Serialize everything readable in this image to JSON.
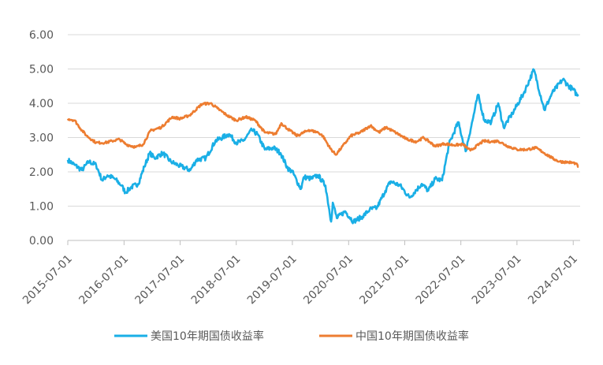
{
  "chart_data": {
    "type": "line",
    "title": "",
    "xlabel": "",
    "ylabel": "",
    "ylim": [
      0,
      6
    ],
    "y_ticks": [
      "0.00",
      "1.00",
      "2.00",
      "3.00",
      "4.00",
      "5.00",
      "6.00"
    ],
    "x_ticks": [
      "2015-07-01",
      "2016-07-01",
      "2017-07-01",
      "2018-07-01",
      "2019-07-01",
      "2020-07-01",
      "2021-07-01",
      "2022-07-01",
      "2023-07-01",
      "2024-07-01"
    ],
    "xlim": [
      "2015-07-01",
      "2024-08-15"
    ],
    "grid": "horizontal",
    "legend_position": "bottom",
    "series": [
      {
        "name": "美国10年期国债收益率",
        "color": "#1aafe6",
        "points": [
          [
            "2015-07-01",
            2.35
          ],
          [
            "2015-08-15",
            2.2
          ],
          [
            "2015-10-01",
            2.05
          ],
          [
            "2015-11-15",
            2.3
          ],
          [
            "2016-01-01",
            2.2
          ],
          [
            "2016-02-10",
            1.75
          ],
          [
            "2016-03-15",
            1.9
          ],
          [
            "2016-05-01",
            1.8
          ],
          [
            "2016-06-15",
            1.6
          ],
          [
            "2016-07-10",
            1.4
          ],
          [
            "2016-08-15",
            1.55
          ],
          [
            "2016-10-01",
            1.65
          ],
          [
            "2016-11-10",
            2.15
          ],
          [
            "2016-12-15",
            2.55
          ],
          [
            "2017-01-15",
            2.4
          ],
          [
            "2017-03-10",
            2.55
          ],
          [
            "2017-05-01",
            2.3
          ],
          [
            "2017-06-15",
            2.2
          ],
          [
            "2017-09-05",
            2.05
          ],
          [
            "2017-10-15",
            2.35
          ],
          [
            "2017-12-15",
            2.4
          ],
          [
            "2018-02-15",
            2.9
          ],
          [
            "2018-05-15",
            3.1
          ],
          [
            "2018-07-01",
            2.85
          ],
          [
            "2018-08-15",
            2.9
          ],
          [
            "2018-10-10",
            3.22
          ],
          [
            "2018-11-15",
            3.1
          ],
          [
            "2019-01-03",
            2.65
          ],
          [
            "2019-03-01",
            2.7
          ],
          [
            "2019-04-15",
            2.55
          ],
          [
            "2019-06-01",
            2.1
          ],
          [
            "2019-07-01",
            2.0
          ],
          [
            "2019-08-25",
            1.5
          ],
          [
            "2019-09-15",
            1.85
          ],
          [
            "2019-11-01",
            1.8
          ],
          [
            "2019-12-15",
            1.9
          ],
          [
            "2020-02-01",
            1.6
          ],
          [
            "2020-03-09",
            0.55
          ],
          [
            "2020-03-20",
            1.1
          ],
          [
            "2020-04-15",
            0.65
          ],
          [
            "2020-06-08",
            0.85
          ],
          [
            "2020-08-01",
            0.55
          ],
          [
            "2020-10-01",
            0.7
          ],
          [
            "2020-11-15",
            0.9
          ],
          [
            "2021-01-01",
            0.95
          ],
          [
            "2021-02-25",
            1.45
          ],
          [
            "2021-03-31",
            1.72
          ],
          [
            "2021-06-01",
            1.6
          ],
          [
            "2021-08-01",
            1.25
          ],
          [
            "2021-10-20",
            1.65
          ],
          [
            "2021-12-01",
            1.45
          ],
          [
            "2022-01-15",
            1.8
          ],
          [
            "2022-03-01",
            1.75
          ],
          [
            "2022-04-15",
            2.8
          ],
          [
            "2022-06-14",
            3.45
          ],
          [
            "2022-08-01",
            2.6
          ],
          [
            "2022-09-15",
            3.5
          ],
          [
            "2022-10-21",
            4.25
          ],
          [
            "2022-12-01",
            3.5
          ],
          [
            "2023-01-15",
            3.45
          ],
          [
            "2023-03-01",
            4.0
          ],
          [
            "2023-04-05",
            3.3
          ],
          [
            "2023-06-01",
            3.7
          ],
          [
            "2023-08-15",
            4.3
          ],
          [
            "2023-10-19",
            4.98
          ],
          [
            "2023-12-27",
            3.8
          ],
          [
            "2024-02-15",
            4.3
          ],
          [
            "2024-04-25",
            4.7
          ],
          [
            "2024-06-01",
            4.5
          ],
          [
            "2024-07-01",
            4.4
          ],
          [
            "2024-08-01",
            4.2
          ]
        ]
      },
      {
        "name": "中国10年期国债收益率",
        "color": "#ed7d31",
        "points": [
          [
            "2015-07-01",
            3.55
          ],
          [
            "2015-08-15",
            3.5
          ],
          [
            "2015-09-15",
            3.3
          ],
          [
            "2015-11-01",
            3.05
          ],
          [
            "2016-01-01",
            2.85
          ],
          [
            "2016-03-01",
            2.85
          ],
          [
            "2016-04-15",
            2.9
          ],
          [
            "2016-06-01",
            2.95
          ],
          [
            "2016-07-15",
            2.8
          ],
          [
            "2016-09-15",
            2.72
          ],
          [
            "2016-11-01",
            2.8
          ],
          [
            "2016-12-20",
            3.2
          ],
          [
            "2017-03-01",
            3.3
          ],
          [
            "2017-05-10",
            3.6
          ],
          [
            "2017-07-01",
            3.55
          ],
          [
            "2017-09-01",
            3.65
          ],
          [
            "2017-11-20",
            3.98
          ],
          [
            "2018-01-15",
            4.0
          ],
          [
            "2018-03-01",
            3.85
          ],
          [
            "2018-05-01",
            3.65
          ],
          [
            "2018-07-01",
            3.5
          ],
          [
            "2018-09-01",
            3.6
          ],
          [
            "2018-11-01",
            3.5
          ],
          [
            "2019-01-02",
            3.15
          ],
          [
            "2019-03-15",
            3.1
          ],
          [
            "2019-04-20",
            3.42
          ],
          [
            "2019-06-01",
            3.25
          ],
          [
            "2019-08-01",
            3.05
          ],
          [
            "2019-10-15",
            3.22
          ],
          [
            "2019-12-15",
            3.15
          ],
          [
            "2020-01-15",
            3.05
          ],
          [
            "2020-03-01",
            2.7
          ],
          [
            "2020-04-08",
            2.5
          ],
          [
            "2020-05-15",
            2.7
          ],
          [
            "2020-07-15",
            3.05
          ],
          [
            "2020-09-15",
            3.15
          ],
          [
            "2020-11-20",
            3.35
          ],
          [
            "2021-01-15",
            3.15
          ],
          [
            "2021-03-01",
            3.3
          ],
          [
            "2021-05-01",
            3.15
          ],
          [
            "2021-07-15",
            2.95
          ],
          [
            "2021-09-15",
            2.88
          ],
          [
            "2021-11-01",
            3.0
          ],
          [
            "2022-01-15",
            2.75
          ],
          [
            "2022-03-15",
            2.82
          ],
          [
            "2022-05-15",
            2.78
          ],
          [
            "2022-07-15",
            2.8
          ],
          [
            "2022-09-01",
            2.62
          ],
          [
            "2022-11-25",
            2.9
          ],
          [
            "2023-01-15",
            2.88
          ],
          [
            "2023-03-01",
            2.9
          ],
          [
            "2023-05-01",
            2.75
          ],
          [
            "2023-07-01",
            2.65
          ],
          [
            "2023-09-01",
            2.65
          ],
          [
            "2023-11-01",
            2.7
          ],
          [
            "2023-12-15",
            2.58
          ],
          [
            "2024-02-15",
            2.4
          ],
          [
            "2024-04-01",
            2.3
          ],
          [
            "2024-06-01",
            2.28
          ],
          [
            "2024-07-15",
            2.25
          ],
          [
            "2024-08-05",
            2.15
          ]
        ]
      }
    ]
  }
}
